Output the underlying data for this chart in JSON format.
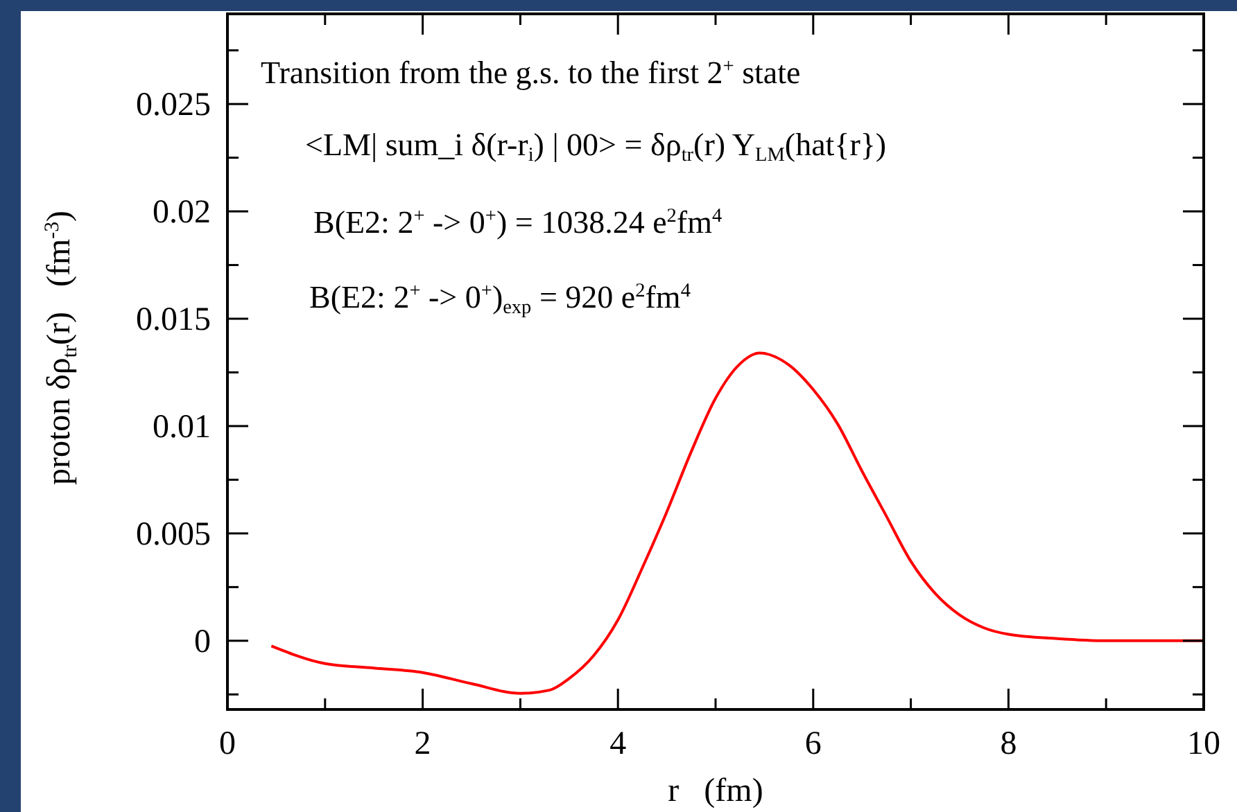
{
  "chart_data": {
    "type": "line",
    "xlabel": "r   (fm)",
    "ylabel": "proton δρ$_{tr}$(r)   (fm$^{-3}$)",
    "annotations": [
      "Transition from the g.s. to the first 2$^{+}$ state",
      "<LM| sum_i δ(r-r$_{i}$) | 00> = δρ$_{tr}$(r) Y$_{LM}$(hat{r})",
      "B(E2: 2$^{+}$ -> 0$^{+}$) = 1038.24 e$^{2}$fm$^{4}$",
      "B(E2: 2$^{+}$ -> 0$^{+}$)$_{exp}$ = 920 e$^{2}$fm$^{4}$"
    ],
    "xlim": [
      0,
      10
    ],
    "ylim": [
      -0.0032,
      0.0292
    ],
    "xticks": [
      0,
      {
        "value": 1,
        "label": null
      },
      2,
      {
        "value": 3,
        "label": null
      },
      4,
      {
        "value": 5,
        "label": null
      },
      6,
      {
        "value": 7,
        "label": null
      },
      8,
      {
        "value": 9,
        "label": null
      },
      10
    ],
    "yticks": [
      {
        "value": -0.0025,
        "label": null
      },
      0,
      {
        "value": 0.0025,
        "label": null
      },
      0.005,
      {
        "value": 0.0075,
        "label": null
      },
      0.01,
      {
        "value": 0.0125,
        "label": null
      },
      0.015,
      {
        "value": 0.0175,
        "label": null
      },
      0.02,
      {
        "value": 0.0225,
        "label": null
      },
      0.025,
      {
        "value": 0.0275,
        "label": null
      }
    ],
    "marker": "none",
    "line_style": "solid",
    "series": [
      {
        "color": "#ff0000",
        "x": [
          0.45,
          1,
          1.5,
          2,
          2.5,
          3,
          3.3,
          3.5,
          3.75,
          4,
          4.25,
          4.5,
          4.75,
          5,
          5.25,
          5.45,
          5.75,
          6,
          6.25,
          6.5,
          6.75,
          7,
          7.25,
          7.5,
          7.75,
          8,
          8.5,
          9,
          10
        ],
        "values": [
          -0.00024,
          -0.00106,
          -0.00127,
          -0.00148,
          -0.002,
          -0.00245,
          -0.0023,
          -0.00176,
          -0.0007,
          0.00097,
          0.0034,
          0.006,
          0.0088,
          0.0113,
          0.0129,
          0.0134,
          0.01285,
          0.0117,
          0.0101,
          0.0079,
          0.0058,
          0.0037,
          0.0022,
          0.0012,
          0.0006,
          0.0003,
          0.0001,
          0,
          0
        ]
      }
    ]
  }
}
